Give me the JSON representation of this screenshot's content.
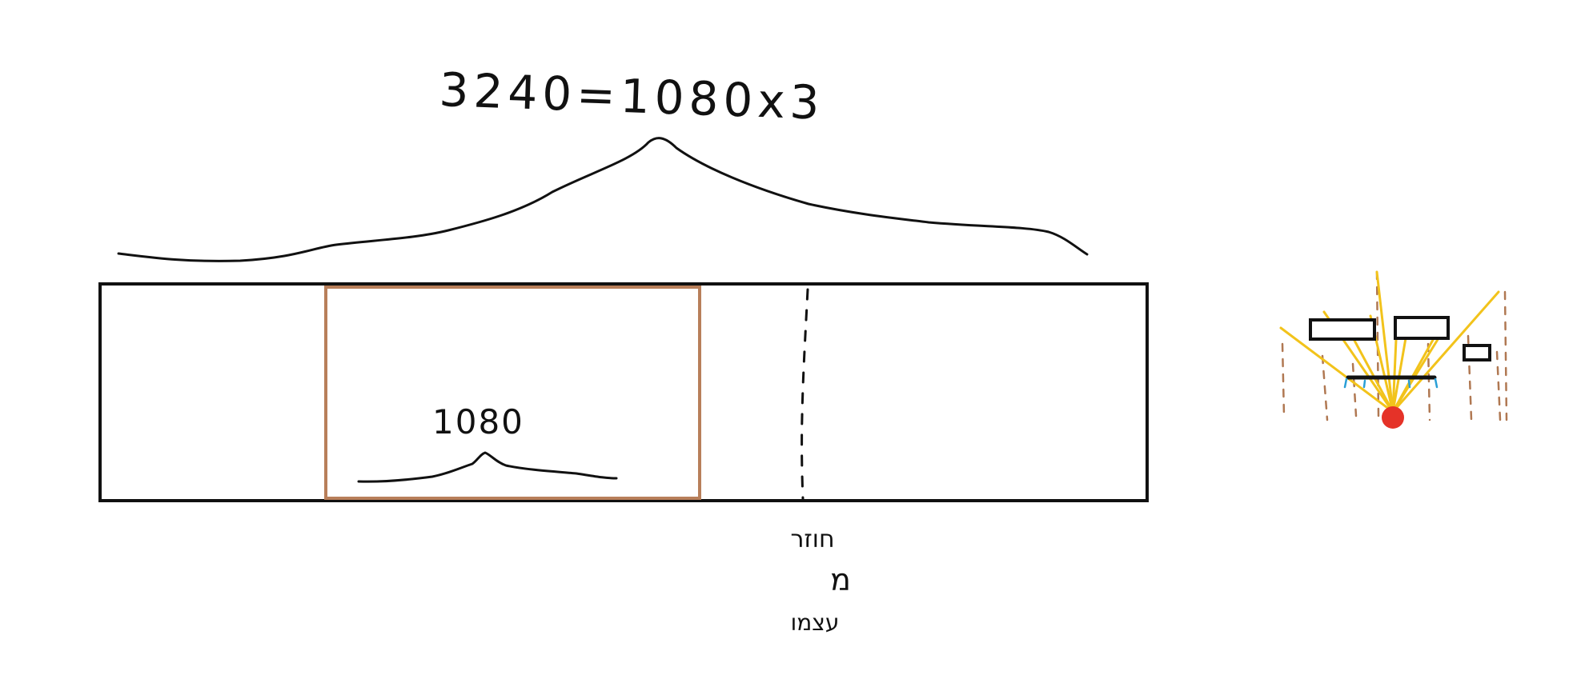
{
  "labels": {
    "top_formula": "3240=1080x3",
    "inner_value": "1080",
    "hebrew_line1": "חוזר",
    "hebrew_line2": "מ",
    "hebrew_line3": "עצמו"
  },
  "colors": {
    "ink": "#111111",
    "background": "#ffffff",
    "inner_frame": "#b87f5a",
    "light_ray": "#f2c31b",
    "light_source": "#e53228",
    "wall_line": "#b07852",
    "water_accent": "#2a9fd6"
  },
  "icons": {
    "light_scene": "light-rays-scene-icon"
  }
}
